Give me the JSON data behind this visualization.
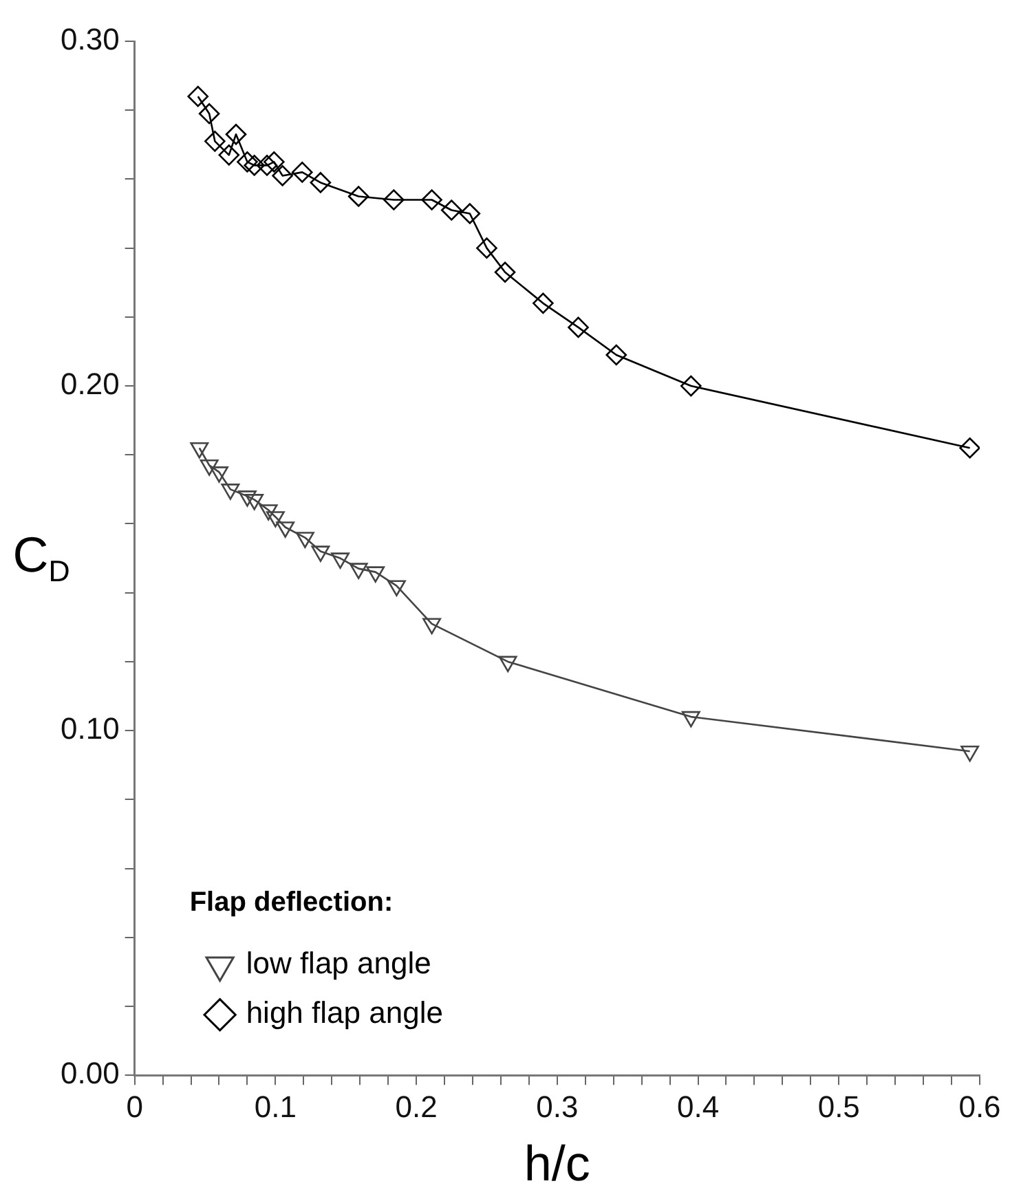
{
  "chart_data": {
    "type": "line",
    "xlabel": "h/c",
    "ylabel": "C$_{D}$",
    "legend_title": "Flap deflection:",
    "legend": "bottom left",
    "grid": false,
    "xlim": [
      0,
      0.6
    ],
    "ylim": [
      0,
      0.3
    ],
    "xticks": [
      0,
      {
        "value": 0.02,
        "label": null
      },
      {
        "value": 0.04,
        "label": null
      },
      {
        "value": 0.06,
        "label": null
      },
      {
        "value": 0.08,
        "label": null
      },
      0.1,
      {
        "value": 0.12,
        "label": null
      },
      {
        "value": 0.14,
        "label": null
      },
      {
        "value": 0.16,
        "label": null
      },
      {
        "value": 0.18,
        "label": null
      },
      0.2,
      {
        "value": 0.22,
        "label": null
      },
      {
        "value": 0.24,
        "label": null
      },
      {
        "value": 0.26,
        "label": null
      },
      {
        "value": 0.28,
        "label": null
      },
      0.3,
      {
        "value": 0.32,
        "label": null
      },
      {
        "value": 0.34,
        "label": null
      },
      {
        "value": 0.36,
        "label": null
      },
      {
        "value": 0.38,
        "label": null
      },
      0.4,
      {
        "value": 0.42,
        "label": null
      },
      {
        "value": 0.44,
        "label": null
      },
      {
        "value": 0.46,
        "label": null
      },
      {
        "value": 0.48,
        "label": null
      },
      0.5,
      {
        "value": 0.52,
        "label": null
      },
      {
        "value": 0.54,
        "label": null
      },
      {
        "value": 0.56,
        "label": null
      },
      {
        "value": 0.58,
        "label": null
      },
      0.6
    ],
    "yticks": [
      {
        "value": 0,
        "label": "0.00"
      },
      {
        "value": 0.02,
        "label": null
      },
      {
        "value": 0.04,
        "label": null
      },
      {
        "value": 0.06,
        "label": null
      },
      {
        "value": 0.08,
        "label": null
      },
      {
        "value": 0.1,
        "label": "0.10"
      },
      {
        "value": 0.12,
        "label": null
      },
      {
        "value": 0.14,
        "label": null
      },
      {
        "value": 0.16,
        "label": null
      },
      {
        "value": 0.18,
        "label": null
      },
      {
        "value": 0.2,
        "label": "0.20"
      },
      {
        "value": 0.22,
        "label": null
      },
      {
        "value": 0.24,
        "label": null
      },
      {
        "value": 0.26,
        "label": null
      },
      {
        "value": 0.28,
        "label": null
      },
      {
        "value": 0.3,
        "label": "0.30"
      }
    ],
    "series": [
      {
        "name": "low flap angle",
        "color": "#444444",
        "marker": "triangle",
        "x": [
          0.046,
          0.053,
          0.06,
          0.068,
          0.08,
          0.085,
          0.095,
          0.1,
          0.107,
          0.121,
          0.132,
          0.146,
          0.159,
          0.171,
          0.186,
          0.211,
          0.265,
          0.395,
          0.593
        ],
        "values": [
          0.182,
          0.177,
          0.175,
          0.17,
          0.168,
          0.167,
          0.164,
          0.162,
          0.159,
          0.156,
          0.152,
          0.15,
          0.147,
          0.146,
          0.142,
          0.131,
          0.12,
          0.104,
          0.094
        ]
      },
      {
        "name": "high flap angle",
        "color": "#000000",
        "marker": "diamond",
        "x": [
          0.045,
          0.053,
          0.057,
          0.067,
          0.072,
          0.08,
          0.085,
          0.094,
          0.099,
          0.105,
          0.119,
          0.132,
          0.159,
          0.184,
          0.211,
          0.225,
          0.238,
          0.25,
          0.263,
          0.29,
          0.315,
          0.342,
          0.395,
          0.593
        ],
        "values": [
          0.284,
          0.279,
          0.271,
          0.267,
          0.273,
          0.265,
          0.264,
          0.264,
          0.265,
          0.261,
          0.262,
          0.259,
          0.255,
          0.254,
          0.254,
          0.251,
          0.25,
          0.24,
          0.233,
          0.224,
          0.217,
          0.209,
          0.2,
          0.182
        ]
      }
    ]
  }
}
